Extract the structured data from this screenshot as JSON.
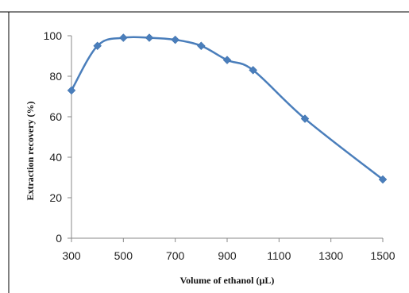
{
  "chart_data": {
    "type": "line",
    "title": "",
    "xlabel": "Volume of ethanol (µL)",
    "ylabel": "Extraction recovery (%)",
    "xlim": [
      300,
      1500
    ],
    "ylim": [
      0,
      100
    ],
    "x_ticks": [
      300,
      500,
      700,
      900,
      1100,
      1300,
      1500
    ],
    "y_ticks": [
      0,
      20,
      40,
      60,
      80,
      100
    ],
    "grid": false,
    "legend": "none",
    "smooth": true,
    "marker": "diamond",
    "series_color": "#4a7ebb",
    "series": [
      {
        "x": [
          300,
          400,
          500,
          600,
          700,
          800,
          900,
          1000,
          1200,
          1500
        ],
        "y": [
          73,
          95,
          99,
          99,
          98,
          95,
          88,
          83,
          59,
          29
        ]
      }
    ]
  }
}
